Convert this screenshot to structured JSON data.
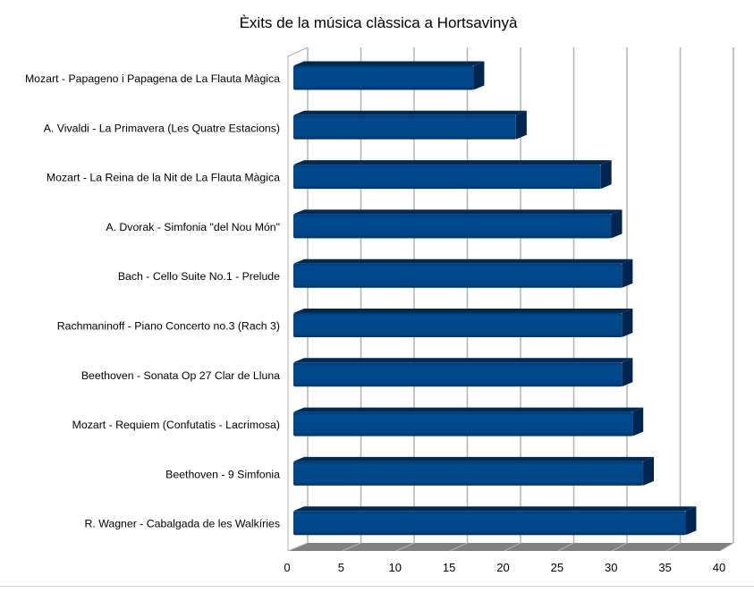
{
  "chart_data": {
    "type": "bar",
    "orientation": "horizontal",
    "style": "3d",
    "title": "Èxits de la música clàssica a Hortsavinyà",
    "xlabel": "",
    "ylabel": "",
    "xlim": [
      0,
      40
    ],
    "x_ticks": [
      "0",
      "5",
      "10",
      "15",
      "20",
      "25",
      "30",
      "35",
      "40"
    ],
    "grid": true,
    "legend": "none",
    "bar_color": "#004586",
    "categories": [
      "Mozart - Papageno i Papagena de La Flauta Màgica",
      "A. Vivaldi - La Primavera (Les Quatre Estacions)",
      "Mozart - La Reina de la Nit de La Flauta Màgica",
      "A. Dvorak - Simfonia \"del Nou Món\"",
      "Bach - Cello Suite No.1 - Prelude",
      "Rachmaninoff - Piano Concerto no.3 (Rach 3)",
      "Beethoven - Sonata Op 27 Clar de Lluna",
      "Mozart - Requiem (Confutatis - Lacrimosa)",
      "Beethoven - 9 Simfonia",
      "R. Wagner - Cabalgada de les Walkíries"
    ],
    "values": [
      17,
      21,
      29,
      30,
      31,
      31,
      31,
      32,
      33,
      37
    ]
  }
}
